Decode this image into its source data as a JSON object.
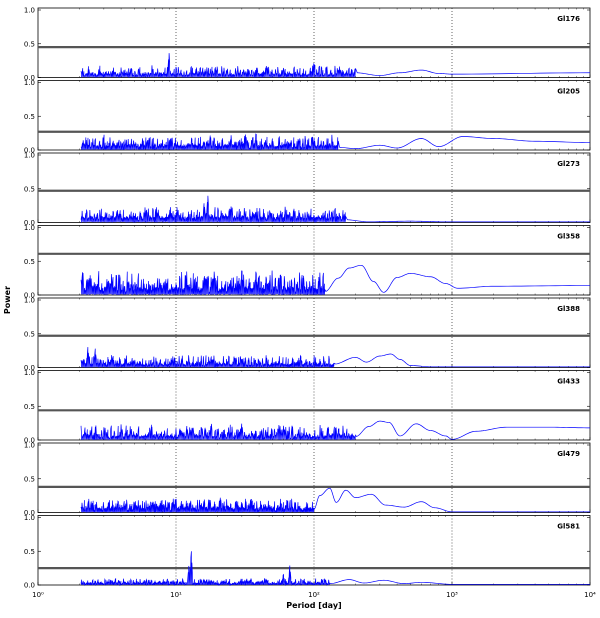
{
  "chart_data": {
    "type": "line",
    "xlabel": "Period [day]",
    "ylabel": "Power",
    "xscale": "log",
    "xlim": [
      1,
      10000
    ],
    "ylim": [
      0,
      1.0
    ],
    "x_ticks": [
      1,
      10,
      100,
      1000,
      10000
    ],
    "x_tick_labels": [
      "10⁰",
      "10¹",
      "10²",
      "10³",
      "10⁴"
    ],
    "y_ticks": [
      0.0,
      0.5,
      1.0
    ],
    "y_tick_labels": [
      "0.0",
      "0.5",
      "1.0"
    ],
    "grid": "vertical dotted at decades",
    "line_color": "#0000ff",
    "threshold_color": "#555555",
    "panels": [
      {
        "star": "Gl176",
        "threshold": 0.45,
        "noise": {
          "base": 0.04,
          "amp": 0.13,
          "end_period": 200
        },
        "peaks": [
          [
            8.9,
            0.38
          ],
          [
            15,
            0.17
          ],
          [
            45,
            0.19
          ],
          [
            60,
            0.15
          ],
          [
            100,
            0.24
          ],
          [
            150,
            0.12
          ]
        ],
        "curve": [
          [
            200,
            0.07
          ],
          [
            300,
            0.03
          ],
          [
            420,
            0.07
          ],
          [
            600,
            0.11
          ],
          [
            800,
            0.06
          ],
          [
            1000,
            0.05
          ],
          [
            10000,
            0.07
          ]
        ]
      },
      {
        "star": "Gl205",
        "threshold": 0.27,
        "noise": {
          "base": 0.05,
          "amp": 0.16,
          "end_period": 150
        },
        "peaks": [
          [
            25,
            0.2
          ],
          [
            32,
            0.25
          ],
          [
            38,
            0.28
          ],
          [
            50,
            0.18
          ]
        ],
        "curve": [
          [
            150,
            0.04
          ],
          [
            200,
            0.02
          ],
          [
            300,
            0.07
          ],
          [
            400,
            0.03
          ],
          [
            600,
            0.17
          ],
          [
            800,
            0.05
          ],
          [
            1200,
            0.2
          ],
          [
            2000,
            0.17
          ],
          [
            4000,
            0.13
          ],
          [
            10000,
            0.11
          ]
        ]
      },
      {
        "star": "Gl273",
        "threshold": 0.47,
        "noise": {
          "base": 0.06,
          "amp": 0.16,
          "end_period": 170
        },
        "peaks": [
          [
            16,
            0.31
          ],
          [
            17,
            0.42
          ],
          [
            25,
            0.26
          ],
          [
            36,
            0.18
          ],
          [
            100,
            0.12
          ]
        ],
        "curve": [
          [
            170,
            0.04
          ],
          [
            250,
            0.01
          ],
          [
            500,
            0.02
          ],
          [
            900,
            0.01
          ],
          [
            10000,
            0.01
          ]
        ]
      },
      {
        "star": "Gl358",
        "threshold": 0.61,
        "noise": {
          "base": 0.08,
          "amp": 0.26,
          "end_period": 120
        },
        "peaks": [
          [
            2.1,
            0.35
          ],
          [
            30,
            0.42
          ],
          [
            38,
            0.39
          ],
          [
            45,
            0.3
          ]
        ],
        "curve": [
          [
            120,
            0.05
          ],
          [
            150,
            0.25
          ],
          [
            180,
            0.4
          ],
          [
            220,
            0.44
          ],
          [
            270,
            0.2
          ],
          [
            320,
            0.04
          ],
          [
            400,
            0.26
          ],
          [
            500,
            0.32
          ],
          [
            700,
            0.27
          ],
          [
            900,
            0.17
          ],
          [
            1100,
            0.1
          ],
          [
            2000,
            0.13
          ],
          [
            10000,
            0.14
          ]
        ]
      },
      {
        "star": "Gl388",
        "threshold": 0.47,
        "noise": {
          "base": 0.04,
          "amp": 0.14,
          "end_period": 140
        },
        "peaks": [
          [
            2.3,
            0.31
          ],
          [
            2.6,
            0.28
          ],
          [
            3.5,
            0.18
          ],
          [
            18,
            0.17
          ],
          [
            80,
            0.2
          ]
        ],
        "curve": [
          [
            140,
            0.05
          ],
          [
            200,
            0.15
          ],
          [
            240,
            0.08
          ],
          [
            300,
            0.17
          ],
          [
            360,
            0.2
          ],
          [
            420,
            0.12
          ],
          [
            500,
            0.03
          ],
          [
            700,
            0.01
          ],
          [
            10000,
            0.01
          ]
        ]
      },
      {
        "star": "Gl433",
        "threshold": 0.44,
        "noise": {
          "base": 0.05,
          "amp": 0.18,
          "end_period": 200
        },
        "peaks": [
          [
            12,
            0.22
          ],
          [
            18,
            0.27
          ],
          [
            30,
            0.26
          ],
          [
            60,
            0.18
          ]
        ],
        "curve": [
          [
            200,
            0.05
          ],
          [
            250,
            0.2
          ],
          [
            300,
            0.28
          ],
          [
            350,
            0.26
          ],
          [
            420,
            0.06
          ],
          [
            550,
            0.24
          ],
          [
            700,
            0.14
          ],
          [
            900,
            0.06
          ],
          [
            1000,
            0.01
          ],
          [
            1500,
            0.13
          ],
          [
            2500,
            0.19
          ],
          [
            5000,
            0.19
          ],
          [
            10000,
            0.18
          ]
        ]
      },
      {
        "star": "Gl479",
        "threshold": 0.38,
        "noise": {
          "base": 0.05,
          "amp": 0.15,
          "end_period": 100
        },
        "peaks": [
          [
            16,
            0.21
          ],
          [
            21,
            0.24
          ],
          [
            30,
            0.17
          ]
        ],
        "curve": [
          [
            100,
            0.05
          ],
          [
            110,
            0.25
          ],
          [
            130,
            0.36
          ],
          [
            145,
            0.15
          ],
          [
            170,
            0.33
          ],
          [
            200,
            0.22
          ],
          [
            260,
            0.27
          ],
          [
            330,
            0.11
          ],
          [
            450,
            0.08
          ],
          [
            600,
            0.16
          ],
          [
            750,
            0.07
          ],
          [
            1000,
            0.01
          ],
          [
            10000,
            0.01
          ]
        ]
      },
      {
        "star": "Gl581",
        "threshold": 0.25,
        "noise": {
          "base": 0.02,
          "amp": 0.08,
          "end_period": 130
        },
        "peaks": [
          [
            12.9,
            0.54
          ],
          [
            12.4,
            0.3
          ],
          [
            66.8,
            0.29
          ],
          [
            60,
            0.18
          ]
        ],
        "curve": [
          [
            130,
            0.02
          ],
          [
            180,
            0.08
          ],
          [
            230,
            0.03
          ],
          [
            320,
            0.07
          ],
          [
            450,
            0.02
          ],
          [
            600,
            0.04
          ],
          [
            1000,
            0.01
          ],
          [
            10000,
            0.01
          ]
        ]
      }
    ]
  }
}
